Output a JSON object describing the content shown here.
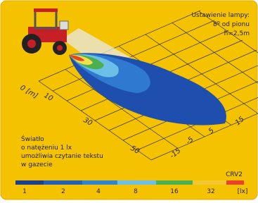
{
  "header": {
    "lines": [
      "Ustawienie lampy:",
      "8º od pionu",
      "h=2,5m"
    ]
  },
  "distance_labels": [
    "0 [m]",
    "10",
    "30",
    "50"
  ],
  "lateral_labels": [
    "15",
    "5",
    "-5",
    "-15"
  ],
  "note": {
    "lines": [
      "Światło",
      "o natężeniu 1 lx",
      "umożliwia czytanie tekstu",
      "w gazecie"
    ]
  },
  "lamp_name": "CRV2",
  "scale": {
    "labels": [
      "1",
      "2",
      "4",
      "8",
      "16",
      "32",
      "[lx]"
    ]
  }
}
